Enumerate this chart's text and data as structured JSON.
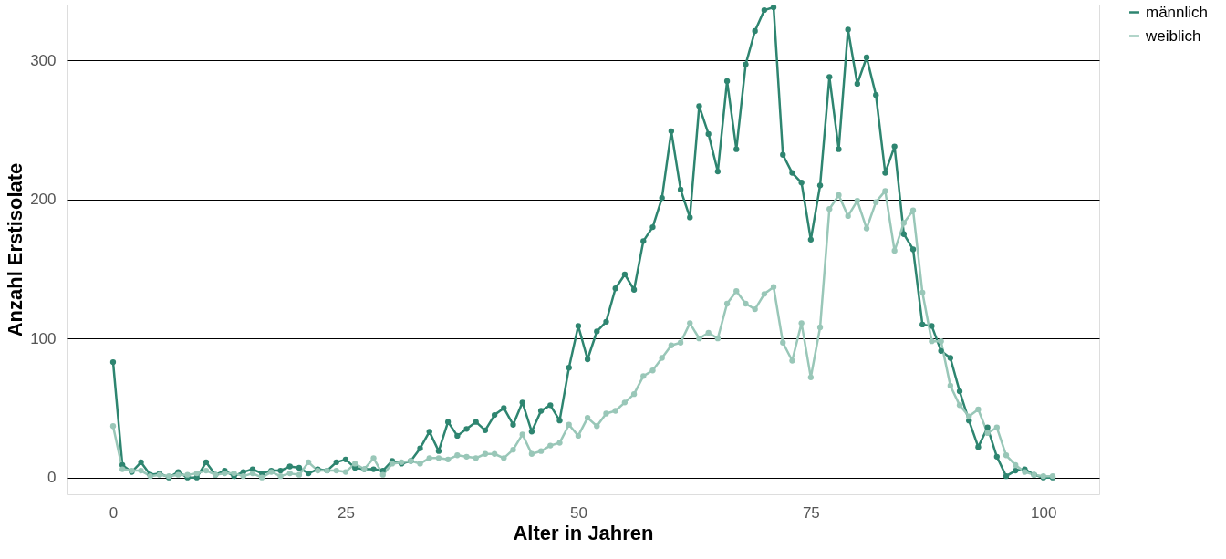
{
  "chart_data": {
    "type": "line",
    "xlabel": "Alter in Jahren",
    "ylabel": "Anzahl Erstisolate",
    "x": [
      0,
      1,
      2,
      3,
      4,
      5,
      6,
      7,
      8,
      9,
      10,
      11,
      12,
      13,
      14,
      15,
      16,
      17,
      18,
      19,
      20,
      21,
      22,
      23,
      24,
      25,
      26,
      27,
      28,
      29,
      30,
      31,
      32,
      33,
      34,
      35,
      36,
      37,
      38,
      39,
      40,
      41,
      42,
      43,
      44,
      45,
      46,
      47,
      48,
      49,
      50,
      51,
      52,
      53,
      54,
      55,
      56,
      57,
      58,
      59,
      60,
      61,
      62,
      63,
      64,
      65,
      66,
      67,
      68,
      69,
      70,
      71,
      72,
      73,
      74,
      75,
      76,
      77,
      78,
      79,
      80,
      81,
      82,
      83,
      84,
      85,
      86,
      87,
      88,
      89,
      90,
      91,
      92,
      93,
      94,
      95,
      96,
      97,
      98,
      99,
      100,
      101
    ],
    "series": [
      {
        "name": "männlich",
        "color": "#2e8570",
        "values": [
          83,
          9,
          4,
          11,
          2,
          3,
          0,
          4,
          0,
          0,
          11,
          2,
          5,
          1,
          4,
          6,
          3,
          5,
          5,
          8,
          7,
          3,
          6,
          5,
          11,
          13,
          7,
          6,
          6,
          5,
          12,
          10,
          12,
          21,
          33,
          19,
          40,
          30,
          35,
          40,
          34,
          45,
          50,
          38,
          54,
          33,
          48,
          52,
          41,
          79,
          109,
          85,
          105,
          112,
          136,
          146,
          135,
          170,
          180,
          201,
          249,
          207,
          187,
          267,
          247,
          220,
          285,
          236,
          297,
          321,
          336,
          338,
          232,
          219,
          212,
          171,
          210,
          288,
          236,
          322,
          283,
          302,
          275,
          219,
          238,
          175,
          164,
          110,
          109,
          91,
          86,
          62,
          41,
          22,
          36,
          15,
          1,
          5,
          6,
          2,
          0,
          0
        ]
      },
      {
        "name": "weiblich",
        "color": "#99c7b8",
        "values": [
          37,
          6,
          5,
          5,
          1,
          2,
          1,
          2,
          2,
          3,
          5,
          2,
          3,
          3,
          1,
          3,
          0,
          4,
          1,
          3,
          2,
          11,
          5,
          5,
          5,
          4,
          10,
          6,
          14,
          2,
          10,
          11,
          12,
          10,
          14,
          14,
          13,
          16,
          15,
          14,
          17,
          17,
          14,
          20,
          31,
          17,
          19,
          23,
          25,
          38,
          30,
          43,
          37,
          46,
          48,
          54,
          60,
          73,
          77,
          86,
          95,
          97,
          111,
          100,
          104,
          100,
          125,
          134,
          125,
          121,
          132,
          137,
          97,
          84,
          111,
          72,
          108,
          193,
          203,
          188,
          199,
          179,
          198,
          206,
          163,
          183,
          192,
          133,
          98,
          98,
          66,
          52,
          44,
          49,
          32,
          36,
          16,
          9,
          4,
          2,
          1,
          1
        ]
      }
    ],
    "xlim": [
      -5,
      106
    ],
    "ylim": [
      -12,
      340
    ],
    "xticks": [
      0,
      25,
      50,
      75,
      100
    ],
    "yticks": [
      0,
      100,
      200,
      300
    ],
    "grid": "y",
    "legend": "right",
    "marker": "circle",
    "line_style": "solid"
  }
}
